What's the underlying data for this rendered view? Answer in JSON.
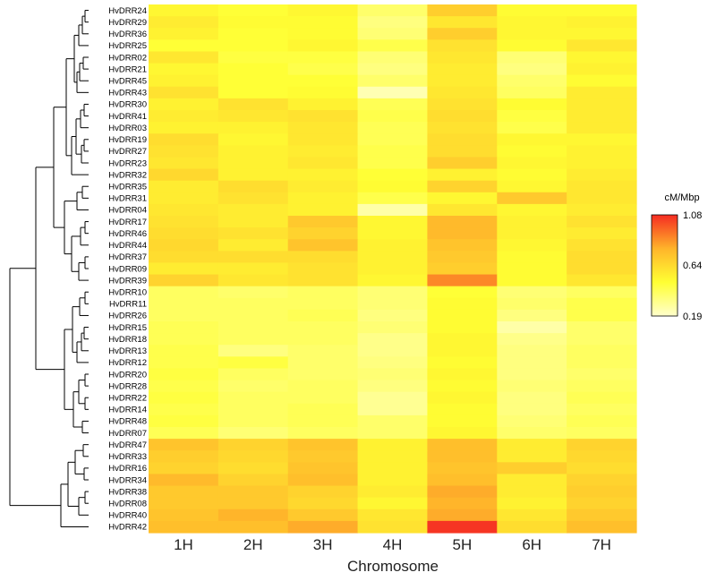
{
  "chart_data": {
    "type": "heatmap",
    "title": "",
    "xlabel": "Chromosome",
    "ylabel": "",
    "columns": [
      "1H",
      "2H",
      "3H",
      "4H",
      "5H",
      "6H",
      "7H"
    ],
    "rows": [
      "HvDRR24",
      "HvDRR29",
      "HvDRR36",
      "HvDRR25",
      "HvDRR02",
      "HvDRR21",
      "HvDRR45",
      "HvDRR43",
      "HvDRR30",
      "HvDRR41",
      "HvDRR03",
      "HvDRR19",
      "HvDRR27",
      "HvDRR23",
      "HvDRR32",
      "HvDRR35",
      "HvDRR31",
      "HvDRR04",
      "HvDRR17",
      "HvDRR46",
      "HvDRR44",
      "HvDRR37",
      "HvDRR09",
      "HvDRR39",
      "HvDRR10",
      "HvDRR11",
      "HvDRR26",
      "HvDRR15",
      "HvDRR18",
      "HvDRR13",
      "HvDRR12",
      "HvDRR20",
      "HvDRR28",
      "HvDRR22",
      "HvDRR14",
      "HvDRR48",
      "HvDRR07",
      "HvDRR47",
      "HvDRR33",
      "HvDRR16",
      "HvDRR34",
      "HvDRR38",
      "HvDRR08",
      "HvDRR40",
      "HvDRR42"
    ],
    "values": [
      [
        0.52,
        0.48,
        0.52,
        0.38,
        0.68,
        0.5,
        0.5
      ],
      [
        0.56,
        0.5,
        0.5,
        0.34,
        0.58,
        0.52,
        0.54
      ],
      [
        0.54,
        0.48,
        0.5,
        0.36,
        0.68,
        0.52,
        0.52
      ],
      [
        0.48,
        0.48,
        0.52,
        0.44,
        0.6,
        0.5,
        0.58
      ],
      [
        0.58,
        0.46,
        0.46,
        0.36,
        0.58,
        0.36,
        0.52
      ],
      [
        0.52,
        0.48,
        0.44,
        0.34,
        0.56,
        0.34,
        0.54
      ],
      [
        0.54,
        0.48,
        0.48,
        0.38,
        0.56,
        0.38,
        0.5
      ],
      [
        0.6,
        0.48,
        0.5,
        0.24,
        0.58,
        0.4,
        0.56
      ],
      [
        0.54,
        0.6,
        0.54,
        0.42,
        0.6,
        0.5,
        0.56
      ],
      [
        0.56,
        0.58,
        0.6,
        0.44,
        0.62,
        0.46,
        0.56
      ],
      [
        0.54,
        0.54,
        0.58,
        0.42,
        0.6,
        0.44,
        0.56
      ],
      [
        0.62,
        0.52,
        0.58,
        0.42,
        0.62,
        0.52,
        0.52
      ],
      [
        0.6,
        0.54,
        0.56,
        0.44,
        0.62,
        0.5,
        0.54
      ],
      [
        0.58,
        0.54,
        0.58,
        0.44,
        0.68,
        0.52,
        0.54
      ],
      [
        0.64,
        0.54,
        0.54,
        0.48,
        0.54,
        0.5,
        0.56
      ],
      [
        0.56,
        0.62,
        0.56,
        0.5,
        0.66,
        0.52,
        0.58
      ],
      [
        0.56,
        0.6,
        0.54,
        0.44,
        0.52,
        0.7,
        0.58
      ],
      [
        0.58,
        0.56,
        0.54,
        0.26,
        0.58,
        0.52,
        0.56
      ],
      [
        0.6,
        0.56,
        0.7,
        0.52,
        0.76,
        0.54,
        0.6
      ],
      [
        0.62,
        0.6,
        0.66,
        0.52,
        0.76,
        0.54,
        0.56
      ],
      [
        0.64,
        0.56,
        0.72,
        0.54,
        0.72,
        0.52,
        0.6
      ],
      [
        0.62,
        0.62,
        0.62,
        0.54,
        0.7,
        0.5,
        0.62
      ],
      [
        0.56,
        0.56,
        0.6,
        0.54,
        0.68,
        0.5,
        0.62
      ],
      [
        0.66,
        0.58,
        0.6,
        0.52,
        0.88,
        0.5,
        0.58
      ],
      [
        0.4,
        0.38,
        0.4,
        0.36,
        0.48,
        0.36,
        0.4
      ],
      [
        0.4,
        0.4,
        0.4,
        0.36,
        0.5,
        0.38,
        0.44
      ],
      [
        0.4,
        0.4,
        0.42,
        0.34,
        0.5,
        0.34,
        0.44
      ],
      [
        0.42,
        0.4,
        0.4,
        0.36,
        0.5,
        0.26,
        0.38
      ],
      [
        0.42,
        0.4,
        0.4,
        0.32,
        0.52,
        0.32,
        0.38
      ],
      [
        0.44,
        0.34,
        0.38,
        0.32,
        0.52,
        0.34,
        0.4
      ],
      [
        0.44,
        0.46,
        0.38,
        0.34,
        0.5,
        0.34,
        0.4
      ],
      [
        0.46,
        0.4,
        0.38,
        0.36,
        0.52,
        0.34,
        0.38
      ],
      [
        0.44,
        0.38,
        0.4,
        0.34,
        0.5,
        0.36,
        0.4
      ],
      [
        0.46,
        0.4,
        0.4,
        0.3,
        0.52,
        0.34,
        0.42
      ],
      [
        0.44,
        0.4,
        0.42,
        0.3,
        0.5,
        0.34,
        0.4
      ],
      [
        0.46,
        0.4,
        0.42,
        0.38,
        0.5,
        0.36,
        0.42
      ],
      [
        0.42,
        0.36,
        0.4,
        0.38,
        0.52,
        0.38,
        0.4
      ],
      [
        0.72,
        0.66,
        0.72,
        0.54,
        0.74,
        0.56,
        0.66
      ],
      [
        0.68,
        0.64,
        0.7,
        0.54,
        0.74,
        0.56,
        0.64
      ],
      [
        0.66,
        0.62,
        0.72,
        0.54,
        0.72,
        0.68,
        0.62
      ],
      [
        0.76,
        0.66,
        0.74,
        0.54,
        0.74,
        0.56,
        0.66
      ],
      [
        0.7,
        0.7,
        0.66,
        0.56,
        0.8,
        0.56,
        0.68
      ],
      [
        0.7,
        0.7,
        0.64,
        0.52,
        0.78,
        0.54,
        0.66
      ],
      [
        0.72,
        0.78,
        0.7,
        0.58,
        0.8,
        0.58,
        0.7
      ],
      [
        0.74,
        0.74,
        0.8,
        0.6,
        1.06,
        0.62,
        0.74
      ]
    ],
    "legend": {
      "title": "cM/Mbp",
      "min": 0.19,
      "mid": 0.64,
      "max": 1.08,
      "tick_labels": [
        "1.08",
        "0.64",
        "0.19"
      ],
      "colors": [
        "#ffffcc",
        "#ffff33",
        "#ffb42a",
        "#f52c22"
      ],
      "placement": "right"
    }
  }
}
